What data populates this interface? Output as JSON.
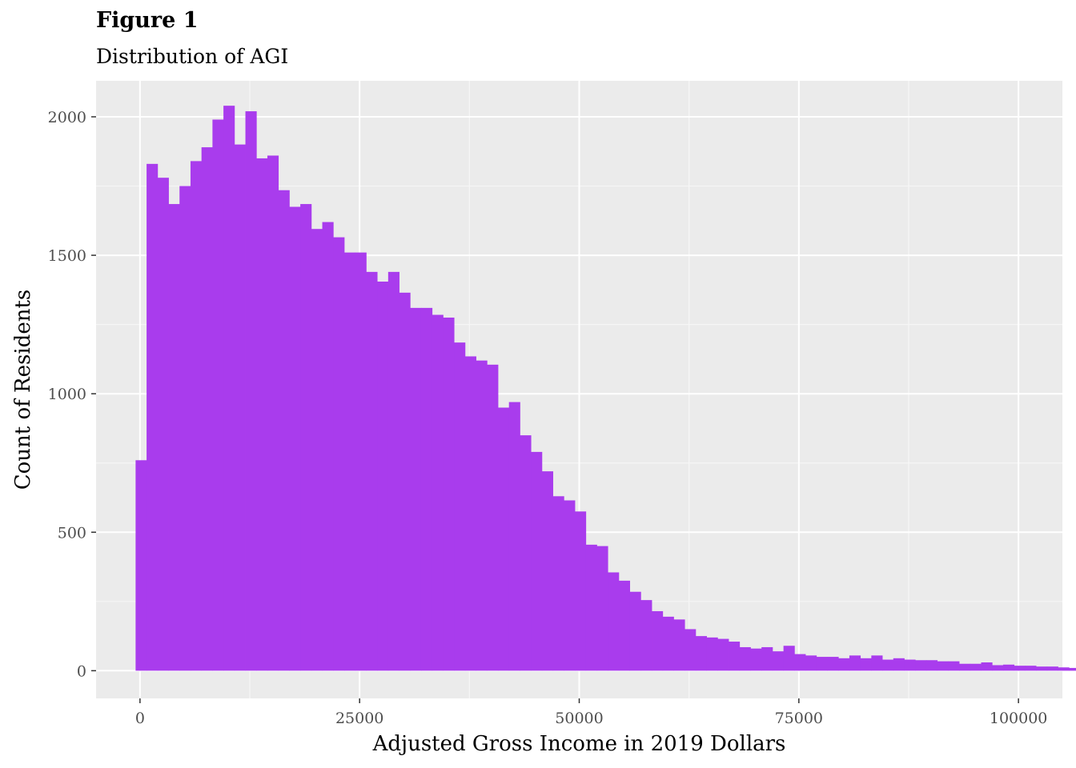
{
  "figure": {
    "title": "Figure 1",
    "subtitle": "Distribution of AGI"
  },
  "colors": {
    "panel": "#ebebeb",
    "grid_major": "#ffffff",
    "grid_minor": "#f6f6f6",
    "bar_fill": "#a93ced"
  },
  "chart_data": {
    "type": "bar",
    "title": "Distribution of AGI",
    "xlabel": "Adjusted Gross Income in 2019 Dollars",
    "ylabel": "Count of Residents",
    "xlim": [
      -5000,
      105000
    ],
    "ylim": [
      -100,
      2130
    ],
    "x_ticks": [
      0,
      25000,
      50000,
      75000,
      100000
    ],
    "x_tick_labels": [
      "0",
      "25000",
      "50000",
      "75000",
      "100000"
    ],
    "y_ticks": [
      0,
      500,
      1000,
      1500,
      2000
    ],
    "y_tick_labels": [
      "0",
      "500",
      "1000",
      "1500",
      "2000"
    ],
    "grid": true,
    "bin_start": -500,
    "bin_width": 1250,
    "values": [
      760,
      1830,
      1780,
      1685,
      1750,
      1840,
      1890,
      1990,
      2040,
      1900,
      2020,
      1850,
      1860,
      1735,
      1675,
      1685,
      1595,
      1620,
      1565,
      1510,
      1510,
      1440,
      1405,
      1440,
      1365,
      1310,
      1310,
      1285,
      1275,
      1185,
      1135,
      1120,
      1105,
      950,
      970,
      850,
      790,
      720,
      630,
      615,
      575,
      455,
      450,
      355,
      325,
      285,
      255,
      215,
      195,
      185,
      150,
      125,
      120,
      115,
      105,
      85,
      80,
      85,
      70,
      90,
      60,
      55,
      50,
      50,
      45,
      55,
      45,
      55,
      40,
      45,
      40,
      38,
      38,
      34,
      34,
      25,
      25,
      30,
      20,
      22,
      18,
      18,
      15,
      15,
      12,
      10
    ]
  }
}
